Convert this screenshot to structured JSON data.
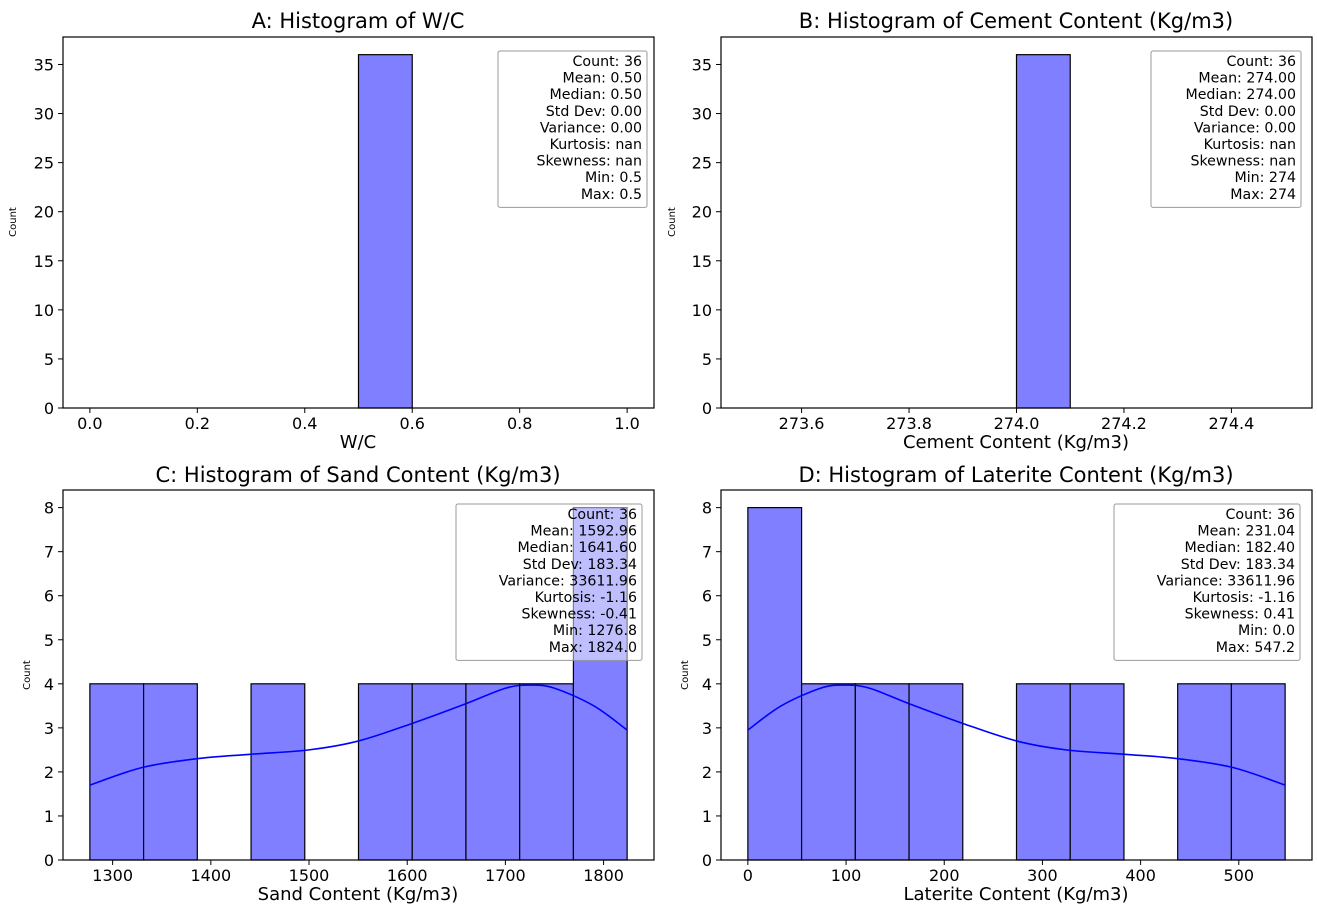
{
  "colors": {
    "bar_fill": "#7f7fff",
    "bar_stroke": "#000000",
    "kde_line": "#0000ff",
    "axes": "#000000",
    "stats_box_border": "#999999"
  },
  "chart_data": [
    {
      "type": "bar",
      "title": "A: Histogram of W/C",
      "xlabel": "W/C",
      "ylabel": "Count",
      "xlim": [
        -0.05,
        1.05
      ],
      "ylim": [
        0,
        37.8
      ],
      "xticks": [
        0.0,
        0.2,
        0.4,
        0.6,
        0.8,
        1.0
      ],
      "xtick_labels": [
        "0.0",
        "0.2",
        "0.4",
        "0.6",
        "0.8",
        "1.0"
      ],
      "yticks": [
        0,
        5,
        10,
        15,
        20,
        25,
        30,
        35
      ],
      "ytick_labels": [
        "0",
        "5",
        "10",
        "15",
        "20",
        "25",
        "30",
        "35"
      ],
      "bins": [
        {
          "x0": 0.5,
          "x1": 0.6,
          "count": 36
        }
      ],
      "kde": [],
      "stats": [
        "Count: 36",
        "Mean: 0.50",
        "Median: 0.50",
        "Std Dev: 0.00",
        "Variance: 0.00",
        "Kurtosis: nan",
        "Skewness: nan",
        "Min: 0.5",
        "Max: 0.5"
      ],
      "stats_placement": "top-right"
    },
    {
      "type": "bar",
      "title": "B: Histogram of Cement Content (Kg/m3)",
      "xlabel": "Cement Content (Kg/m3)",
      "ylabel": "Count",
      "xlim": [
        273.45,
        274.55
      ],
      "ylim": [
        0,
        37.8
      ],
      "xticks": [
        273.6,
        273.8,
        274.0,
        274.2,
        274.4
      ],
      "xtick_labels": [
        "273.6",
        "273.8",
        "274.0",
        "274.2",
        "274.4"
      ],
      "yticks": [
        0,
        5,
        10,
        15,
        20,
        25,
        30,
        35
      ],
      "ytick_labels": [
        "0",
        "5",
        "10",
        "15",
        "20",
        "25",
        "30",
        "35"
      ],
      "bins": [
        {
          "x0": 274.0,
          "x1": 274.1,
          "count": 36
        }
      ],
      "kde": [],
      "stats": [
        "Count: 36",
        "Mean: 274.00",
        "Median: 274.00",
        "Std Dev: 0.00",
        "Variance: 0.00",
        "Kurtosis: nan",
        "Skewness: nan",
        "Min: 274",
        "Max: 274"
      ],
      "stats_placement": "top-right"
    },
    {
      "type": "bar",
      "title": "C: Histogram of Sand Content (Kg/m3)",
      "xlabel": "Sand Content (Kg/m3)",
      "ylabel": "Count",
      "xlim": [
        1249.44,
        1851.36
      ],
      "ylim": [
        0,
        8.4
      ],
      "xticks": [
        1300,
        1400,
        1500,
        1600,
        1700,
        1800
      ],
      "xtick_labels": [
        "1300",
        "1400",
        "1500",
        "1600",
        "1700",
        "1800"
      ],
      "yticks": [
        0,
        1,
        2,
        3,
        4,
        5,
        6,
        7,
        8
      ],
      "ytick_labels": [
        "0",
        "1",
        "2",
        "3",
        "4",
        "5",
        "6",
        "7",
        "8"
      ],
      "bins": [
        {
          "x0": 1276.8,
          "x1": 1331.52,
          "count": 4
        },
        {
          "x0": 1331.52,
          "x1": 1386.24,
          "count": 4
        },
        {
          "x0": 1386.24,
          "x1": 1440.96,
          "count": 0
        },
        {
          "x0": 1440.96,
          "x1": 1495.68,
          "count": 4
        },
        {
          "x0": 1495.68,
          "x1": 1550.4,
          "count": 0
        },
        {
          "x0": 1550.4,
          "x1": 1605.12,
          "count": 4
        },
        {
          "x0": 1605.12,
          "x1": 1659.84,
          "count": 4
        },
        {
          "x0": 1659.84,
          "x1": 1714.56,
          "count": 4
        },
        {
          "x0": 1714.56,
          "x1": 1769.28,
          "count": 4
        },
        {
          "x0": 1769.28,
          "x1": 1824.0,
          "count": 8
        }
      ],
      "kde": [
        [
          1276.8,
          1.7
        ],
        [
          1330,
          2.1
        ],
        [
          1386,
          2.3
        ],
        [
          1440,
          2.4
        ],
        [
          1500,
          2.5
        ],
        [
          1550,
          2.7
        ],
        [
          1605,
          3.1
        ],
        [
          1660,
          3.55
        ],
        [
          1700,
          3.9
        ],
        [
          1725,
          3.97
        ],
        [
          1750,
          3.9
        ],
        [
          1790,
          3.5
        ],
        [
          1824,
          2.95
        ]
      ],
      "stats": [
        "Count: 36",
        "Mean: 1592.96",
        "Median: 1641.60",
        "Std Dev: 183.34",
        "Variance: 33611.96",
        "Kurtosis: -1.16",
        "Skewness: -0.41",
        "Min: 1276.8",
        "Max: 1824.0"
      ],
      "stats_placement": "top-right"
    },
    {
      "type": "bar",
      "title": "D: Histogram of Laterite Content (Kg/m3)",
      "xlabel": "Laterite Content (Kg/m3)",
      "ylabel": "Count",
      "xlim": [
        -27.36,
        574.56
      ],
      "ylim": [
        0,
        8.4
      ],
      "xticks": [
        0,
        100,
        200,
        300,
        400,
        500
      ],
      "xtick_labels": [
        "0",
        "100",
        "200",
        "300",
        "400",
        "500"
      ],
      "yticks": [
        0,
        1,
        2,
        3,
        4,
        5,
        6,
        7,
        8
      ],
      "ytick_labels": [
        "0",
        "1",
        "2",
        "3",
        "4",
        "5",
        "6",
        "7",
        "8"
      ],
      "bins": [
        {
          "x0": 0.0,
          "x1": 54.72,
          "count": 8
        },
        {
          "x0": 54.72,
          "x1": 109.44,
          "count": 4
        },
        {
          "x0": 109.44,
          "x1": 164.16,
          "count": 4
        },
        {
          "x0": 164.16,
          "x1": 218.88,
          "count": 4
        },
        {
          "x0": 218.88,
          "x1": 273.6,
          "count": 0
        },
        {
          "x0": 273.6,
          "x1": 328.32,
          "count": 4
        },
        {
          "x0": 328.32,
          "x1": 383.04,
          "count": 4
        },
        {
          "x0": 383.04,
          "x1": 437.76,
          "count": 0
        },
        {
          "x0": 437.76,
          "x1": 492.48,
          "count": 4
        },
        {
          "x0": 492.48,
          "x1": 547.2,
          "count": 4
        }
      ],
      "kde": [
        [
          0,
          2.95
        ],
        [
          34,
          3.5
        ],
        [
          74,
          3.9
        ],
        [
          99,
          3.97
        ],
        [
          124,
          3.9
        ],
        [
          164,
          3.55
        ],
        [
          219,
          3.1
        ],
        [
          274,
          2.7
        ],
        [
          324,
          2.5
        ],
        [
          384,
          2.4
        ],
        [
          438,
          2.3
        ],
        [
          494,
          2.1
        ],
        [
          547.2,
          1.7
        ]
      ],
      "stats": [
        "Count: 36",
        "Mean: 231.04",
        "Median: 182.40",
        "Std Dev: 183.34",
        "Variance: 33611.96",
        "Kurtosis: -1.16",
        "Skewness: 0.41",
        "Min: 0.0",
        "Max: 547.2"
      ],
      "stats_placement": "top-right"
    }
  ]
}
